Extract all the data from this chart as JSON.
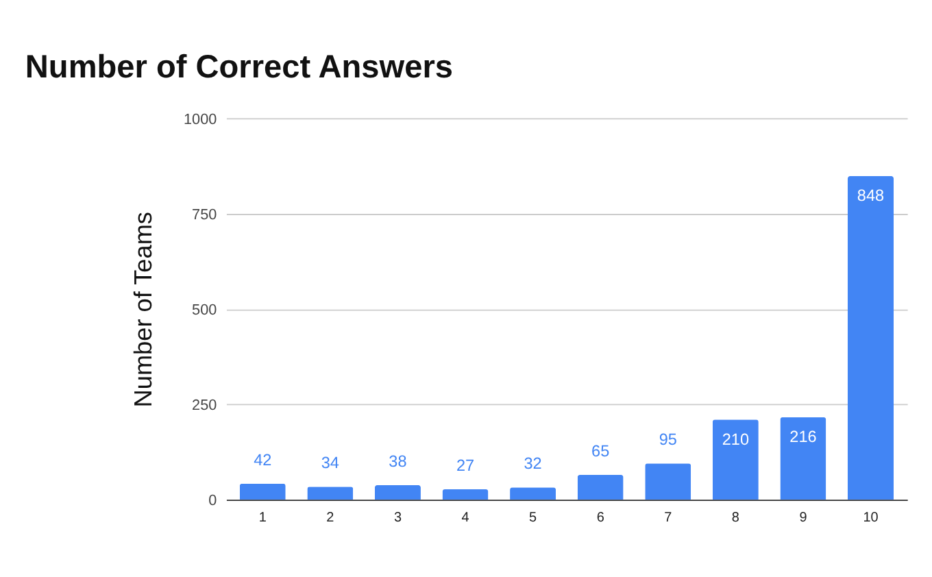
{
  "chart_data": {
    "type": "bar",
    "title": "Number of Correct Answers",
    "ylabel": "Number of Teams",
    "categories": [
      "1",
      "2",
      "3",
      "4",
      "5",
      "6",
      "7",
      "8",
      "9",
      "10"
    ],
    "values": [
      42,
      34,
      38,
      27,
      32,
      65,
      95,
      210,
      216,
      848
    ],
    "color": "#4285f4",
    "ylim": [
      0,
      1000
    ],
    "yticks": [
      0,
      250,
      500,
      750,
      1000
    ],
    "grid": "y",
    "data_labels": true
  }
}
